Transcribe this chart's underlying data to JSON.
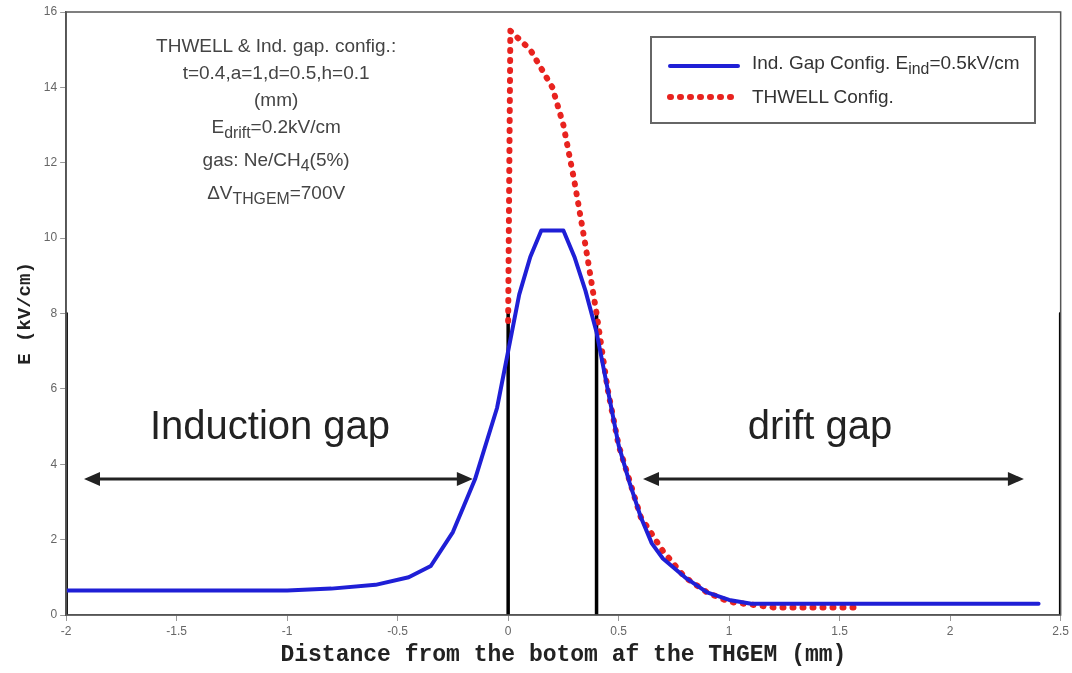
{
  "chart_data": {
    "type": "line",
    "xlabel": "Distance from the botom af the THGEM (mm)",
    "ylabel": "E (kV/cm)",
    "xlim": [
      -2,
      2.5
    ],
    "xticks": [
      -2,
      -1.5,
      -1,
      -0.5,
      0,
      0.5,
      1,
      1.5,
      2,
      2.5
    ],
    "ylim": [
      0,
      16
    ],
    "yticks": [
      0,
      2,
      4,
      6,
      8,
      10,
      12,
      14,
      16
    ],
    "grid": false,
    "legend": "top right",
    "marker": "none",
    "series": [
      {
        "name": "Ind. Gap Config. E$_{ind}$=0.5kV/cm",
        "color": "#1f1fd6",
        "line_style": "solid",
        "x": [
          -2,
          -1.5,
          -1,
          -0.8,
          -0.6,
          -0.45,
          -0.35,
          -0.25,
          -0.15,
          -0.05,
          0,
          0.05,
          0.1,
          0.15,
          0.25,
          0.3,
          0.35,
          0.4,
          0.45,
          0.5,
          0.55,
          0.6,
          0.65,
          0.7,
          0.8,
          0.9,
          1.0,
          1.1,
          1.2,
          1.5,
          2,
          2.4
        ],
        "values": [
          0.65,
          0.65,
          0.65,
          0.7,
          0.8,
          1.0,
          1.3,
          2.2,
          3.6,
          5.5,
          7,
          8.5,
          9.5,
          10.2,
          10.2,
          9.5,
          8.6,
          7.5,
          6,
          4.5,
          3.5,
          2.6,
          1.9,
          1.5,
          1.0,
          0.6,
          0.4,
          0.3,
          0.3,
          0.3,
          0.3,
          0.3
        ]
      },
      {
        "name": "THWELL Config.",
        "color": "#e8231f",
        "line_style": "dotted",
        "x": [
          0,
          0.01,
          0.1,
          0.2,
          0.25,
          0.3,
          0.35,
          0.4,
          0.45,
          0.5,
          0.6,
          0.7,
          0.8,
          0.9,
          1.0,
          1.2,
          1.6
        ],
        "values": [
          7.8,
          15.5,
          15.0,
          14.0,
          13,
          11.5,
          9.8,
          8,
          6,
          4.5,
          2.6,
          1.7,
          1.0,
          0.6,
          0.35,
          0.2,
          0.2
        ]
      },
      {
        "color": "#000000",
        "line_style": "solid",
        "x": [
          -2,
          -2
        ],
        "values": [
          0,
          8
        ]
      },
      {
        "color": "#000000",
        "line_style": "solid",
        "x": [
          0,
          0
        ],
        "values": [
          0,
          8
        ]
      },
      {
        "color": "#000000",
        "line_style": "solid",
        "x": [
          0.4,
          0.4
        ],
        "values": [
          0,
          8
        ]
      },
      {
        "color": "#000000",
        "line_style": "solid",
        "x": [
          2.5,
          2.5
        ],
        "values": [
          0,
          8
        ]
      }
    ],
    "annotations": [
      "THWELL & Ind. gap. config.:\nt=0.4,a=1,d=0.5,h=0.1\n(mm)\nE$_{drift}$=0.2kV/cm\ngas: Ne/CH$_{4}$(5%)\nΔV$_{THGEM}$=700V",
      "Induction gap",
      "drift gap"
    ]
  }
}
